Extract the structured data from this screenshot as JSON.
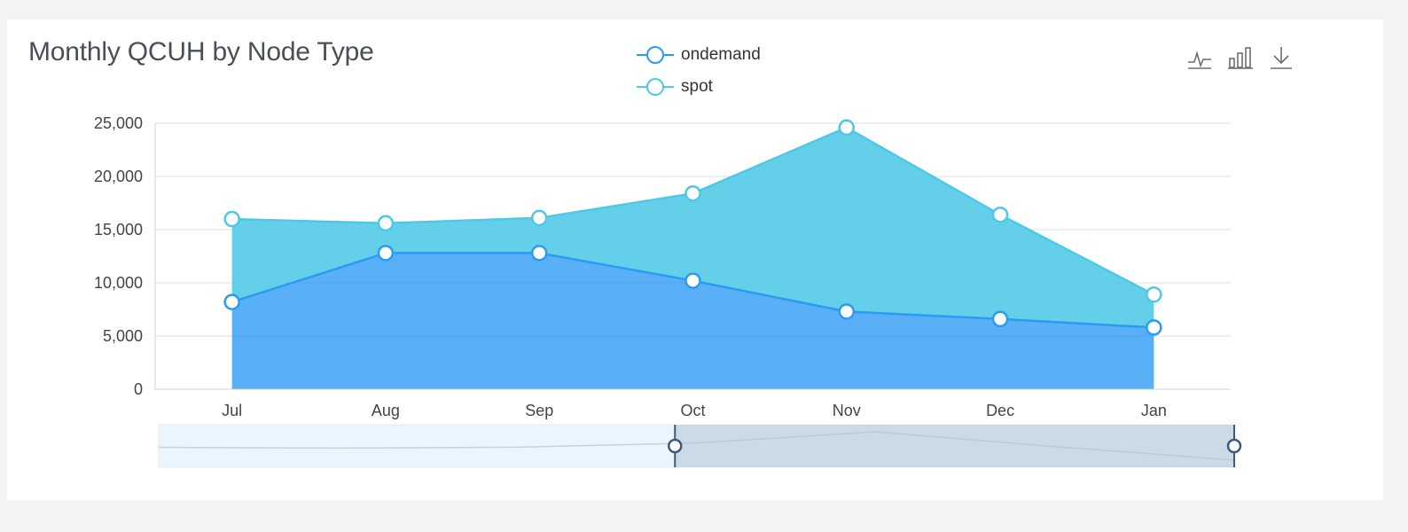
{
  "chart_data": {
    "type": "area",
    "stacked": true,
    "title": "Monthly QCUH by Node Type",
    "categories": [
      "Jul",
      "Aug",
      "Sep",
      "Oct",
      "Nov",
      "Dec",
      "Jan"
    ],
    "series": [
      {
        "name": "ondemand",
        "color": "#2b9af3",
        "values": [
          8200,
          12800,
          12800,
          10200,
          7300,
          6600,
          5800
        ]
      },
      {
        "name": "spot",
        "color": "#4fc8e6",
        "values": [
          7800,
          2800,
          3300,
          8200,
          17300,
          9800,
          3100
        ]
      }
    ],
    "ylim": [
      0,
      25000
    ],
    "yticks": [
      0,
      5000,
      10000,
      15000,
      20000,
      25000
    ],
    "ytick_labels": [
      "0",
      "5,000",
      "10,000",
      "15,000",
      "20,000",
      "25,000"
    ],
    "grid": true,
    "legend_position": "top-center",
    "data_zoom": {
      "start_fraction": 0.48,
      "end_fraction": 1.0
    }
  },
  "toolbox": {
    "line_icon": "line-chart-icon",
    "bar_icon": "bar-chart-icon",
    "download_icon": "download-icon"
  }
}
